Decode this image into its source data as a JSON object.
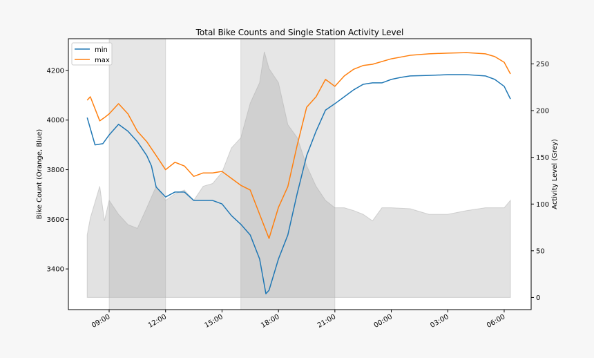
{
  "chart_data": {
    "type": "line",
    "title": "Total Bike Counts and Single Station Activity Level",
    "ylabel": "Bike Count (Orange, Blue)",
    "y2label": "Activity Level (Grey)",
    "xlabel": "",
    "xlim": [
      "06:50",
      "07:26"
    ],
    "ylim": [
      3236,
      4328
    ],
    "y2lim": [
      -13,
      277
    ],
    "xticks": [
      "09:00",
      "12:00",
      "15:00",
      "18:00",
      "21:00",
      "00:00",
      "03:00",
      "06:00"
    ],
    "yticks": [
      3400,
      3600,
      3800,
      4000,
      4200
    ],
    "y2ticks": [
      0,
      50,
      100,
      150,
      200,
      250
    ],
    "grid": false,
    "legend": {
      "placement": "top-left",
      "entries": [
        "min",
        "max"
      ]
    },
    "shaded_spans": [
      [
        "09:00",
        "12:00"
      ],
      [
        "16:00",
        "21:00"
      ]
    ],
    "colors": {
      "min": "#1f77b4",
      "max": "#ff7f0e",
      "activity": "#c8c8c8",
      "span": "#cccccc"
    },
    "series": [
      {
        "name": "min",
        "axis": "left",
        "points": [
          [
            "07:50",
            4010
          ],
          [
            "08:15",
            3900
          ],
          [
            "08:40",
            3905
          ],
          [
            "09:00",
            3940
          ],
          [
            "09:30",
            3983
          ],
          [
            "10:00",
            3955
          ],
          [
            "10:30",
            3913
          ],
          [
            "11:00",
            3857
          ],
          [
            "11:15",
            3815
          ],
          [
            "11:30",
            3730
          ],
          [
            "12:00",
            3690
          ],
          [
            "12:30",
            3710
          ],
          [
            "13:00",
            3710
          ],
          [
            "13:30",
            3676
          ],
          [
            "14:00",
            3676
          ],
          [
            "14:30",
            3676
          ],
          [
            "15:00",
            3662
          ],
          [
            "15:30",
            3615
          ],
          [
            "16:00",
            3580
          ],
          [
            "16:30",
            3537
          ],
          [
            "17:00",
            3440
          ],
          [
            "17:20",
            3300
          ],
          [
            "17:30",
            3314
          ],
          [
            "18:00",
            3440
          ],
          [
            "18:30",
            3537
          ],
          [
            "19:00",
            3705
          ],
          [
            "19:30",
            3857
          ],
          [
            "20:00",
            3955
          ],
          [
            "20:30",
            4040
          ],
          [
            "21:00",
            4066
          ],
          [
            "21:30",
            4094
          ],
          [
            "22:00",
            4122
          ],
          [
            "22:30",
            4144
          ],
          [
            "23:00",
            4150
          ],
          [
            "23:30",
            4150
          ],
          [
            "00:00",
            4164
          ],
          [
            "00:30",
            4172
          ],
          [
            "01:00",
            4178
          ],
          [
            "02:00",
            4180
          ],
          [
            "03:00",
            4183
          ],
          [
            "04:00",
            4183
          ],
          [
            "05:00",
            4178
          ],
          [
            "05:30",
            4164
          ],
          [
            "06:00",
            4136
          ],
          [
            "06:20",
            4085
          ]
        ]
      },
      {
        "name": "max",
        "axis": "left",
        "points": [
          [
            "07:50",
            4080
          ],
          [
            "08:00",
            4094
          ],
          [
            "08:30",
            3997
          ],
          [
            "08:45",
            4010
          ],
          [
            "09:00",
            4025
          ],
          [
            "09:30",
            4066
          ],
          [
            "10:00",
            4025
          ],
          [
            "10:30",
            3955
          ],
          [
            "11:00",
            3913
          ],
          [
            "11:30",
            3857
          ],
          [
            "12:00",
            3800
          ],
          [
            "12:30",
            3830
          ],
          [
            "13:00",
            3815
          ],
          [
            "13:30",
            3773
          ],
          [
            "14:00",
            3787
          ],
          [
            "14:30",
            3787
          ],
          [
            "15:00",
            3793
          ],
          [
            "15:30",
            3765
          ],
          [
            "16:00",
            3737
          ],
          [
            "16:30",
            3718
          ],
          [
            "17:00",
            3620
          ],
          [
            "17:30",
            3523
          ],
          [
            "18:00",
            3648
          ],
          [
            "18:30",
            3732
          ],
          [
            "19:00",
            3900
          ],
          [
            "19:30",
            4052
          ],
          [
            "20:00",
            4094
          ],
          [
            "20:30",
            4164
          ],
          [
            "21:00",
            4136
          ],
          [
            "21:30",
            4178
          ],
          [
            "22:00",
            4205
          ],
          [
            "22:30",
            4220
          ],
          [
            "23:00",
            4225
          ],
          [
            "00:00",
            4247
          ],
          [
            "01:00",
            4261
          ],
          [
            "02:00",
            4267
          ],
          [
            "03:00",
            4270
          ],
          [
            "04:00",
            4272
          ],
          [
            "05:00",
            4267
          ],
          [
            "05:30",
            4256
          ],
          [
            "06:00",
            4233
          ],
          [
            "06:20",
            4186
          ]
        ]
      },
      {
        "axis": "right",
        "kind": "area",
        "points": [
          [
            "07:50",
            67
          ],
          [
            "08:00",
            85
          ],
          [
            "08:30",
            119
          ],
          [
            "08:45",
            82
          ],
          [
            "09:00",
            104
          ],
          [
            "09:30",
            89
          ],
          [
            "10:00",
            78
          ],
          [
            "10:30",
            74
          ],
          [
            "11:00",
            96
          ],
          [
            "11:30",
            119
          ],
          [
            "12:00",
            104
          ],
          [
            "12:30",
            111
          ],
          [
            "13:00",
            115
          ],
          [
            "13:30",
            104
          ],
          [
            "14:00",
            119
          ],
          [
            "14:30",
            122
          ],
          [
            "15:00",
            134
          ],
          [
            "15:30",
            160
          ],
          [
            "16:00",
            171
          ],
          [
            "16:30",
            208
          ],
          [
            "17:00",
            230
          ],
          [
            "17:15",
            263
          ],
          [
            "17:30",
            245
          ],
          [
            "18:00",
            230
          ],
          [
            "18:30",
            185
          ],
          [
            "19:00",
            171
          ],
          [
            "19:30",
            141
          ],
          [
            "20:00",
            119
          ],
          [
            "20:30",
            104
          ],
          [
            "21:00",
            96
          ],
          [
            "21:30",
            96
          ],
          [
            "22:00",
            93
          ],
          [
            "22:30",
            89
          ],
          [
            "23:00",
            82
          ],
          [
            "23:30",
            96
          ],
          [
            "00:00",
            96
          ],
          [
            "01:00",
            95
          ],
          [
            "02:00",
            89
          ],
          [
            "03:00",
            89
          ],
          [
            "04:00",
            93
          ],
          [
            "05:00",
            96
          ],
          [
            "06:00",
            96
          ],
          [
            "06:20",
            104
          ]
        ]
      }
    ]
  }
}
